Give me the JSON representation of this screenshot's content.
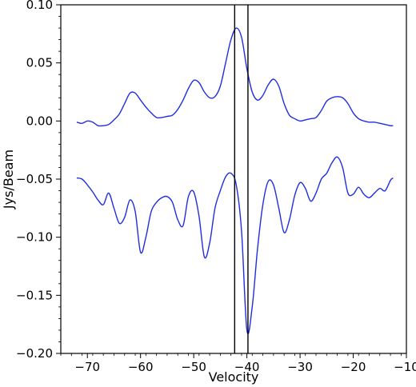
{
  "chart_data": {
    "type": "line",
    "xlabel": "Velocity",
    "ylabel": "Jys/Beam",
    "xlim": [
      -75,
      -10
    ],
    "ylim": [
      -0.2,
      0.1
    ],
    "xticks": [
      -70,
      -60,
      -50,
      -40,
      -30,
      -20,
      -10
    ],
    "xtick_labels": [
      "−70",
      "−60",
      "−50",
      "−40",
      "−30",
      "−20",
      "−10"
    ],
    "yticks": [
      -0.2,
      -0.15,
      -0.1,
      -0.05,
      0.0,
      0.05,
      0.1
    ],
    "ytick_labels": [
      "−0.20",
      "−0.15",
      "−0.10",
      "−0.05",
      "0.00",
      "0.05",
      "0.10"
    ],
    "grid": false,
    "vertical_lines": [
      -42.3,
      -39.8
    ],
    "series_color": "#1f2ee0",
    "vline_color": "#000000",
    "series": [
      {
        "x": [
          -72,
          -71,
          -70,
          -69,
          -68,
          -67,
          -66,
          -65,
          -64,
          -63,
          -62,
          -61,
          -60,
          -59,
          -58,
          -57,
          -56,
          -55,
          -54,
          -53,
          -52,
          -51,
          -50,
          -49,
          -48,
          -47,
          -46,
          -45,
          -44,
          -43,
          -42,
          -41,
          -40,
          -39,
          -38,
          -37,
          -36,
          -35,
          -34,
          -33,
          -32,
          -31,
          -30,
          -29,
          -28,
          -27,
          -26,
          -25,
          -24,
          -23,
          -22,
          -21,
          -20,
          -19,
          -18,
          -17,
          -16,
          -15,
          -14,
          -13,
          -12.5
        ],
        "y": [
          -0.001,
          -0.002,
          0.0,
          -0.001,
          -0.004,
          -0.004,
          -0.003,
          0.001,
          0.006,
          0.015,
          0.024,
          0.024,
          0.018,
          0.012,
          0.007,
          0.003,
          0.003,
          0.004,
          0.005,
          0.01,
          0.018,
          0.028,
          0.035,
          0.033,
          0.025,
          0.02,
          0.021,
          0.03,
          0.05,
          0.07,
          0.08,
          0.072,
          0.045,
          0.025,
          0.018,
          0.022,
          0.031,
          0.036,
          0.03,
          0.015,
          0.005,
          0.002,
          0.0,
          0.001,
          0.002,
          0.003,
          0.009,
          0.017,
          0.02,
          0.021,
          0.02,
          0.015,
          0.007,
          0.002,
          0.0,
          -0.001,
          -0.001,
          -0.002,
          -0.003,
          -0.004,
          -0.004
        ]
      },
      {
        "x": [
          -72,
          -71,
          -70,
          -69,
          -68,
          -67,
          -66,
          -65,
          -64,
          -63,
          -62,
          -61,
          -60,
          -59,
          -58,
          -57,
          -56,
          -55,
          -54,
          -53,
          -52,
          -51,
          -50,
          -49,
          -48,
          -47,
          -46,
          -45,
          -44,
          -43,
          -42,
          -41,
          -40,
          -39,
          -38,
          -37,
          -36,
          -35,
          -34,
          -33,
          -32,
          -31,
          -30,
          -29,
          -28,
          -27,
          -26,
          -25,
          -24,
          -23,
          -22,
          -21,
          -20,
          -19,
          -18,
          -17,
          -16,
          -15,
          -14,
          -13,
          -12.5
        ],
        "y": [
          -0.049,
          -0.05,
          -0.055,
          -0.061,
          -0.068,
          -0.072,
          -0.062,
          -0.075,
          -0.088,
          -0.083,
          -0.068,
          -0.078,
          -0.113,
          -0.1,
          -0.078,
          -0.07,
          -0.066,
          -0.065,
          -0.07,
          -0.085,
          -0.09,
          -0.065,
          -0.061,
          -0.082,
          -0.117,
          -0.105,
          -0.075,
          -0.06,
          -0.048,
          -0.045,
          -0.055,
          -0.095,
          -0.18,
          -0.16,
          -0.11,
          -0.072,
          -0.052,
          -0.055,
          -0.075,
          -0.096,
          -0.085,
          -0.064,
          -0.053,
          -0.058,
          -0.069,
          -0.062,
          -0.05,
          -0.045,
          -0.036,
          -0.031,
          -0.04,
          -0.062,
          -0.063,
          -0.057,
          -0.063,
          -0.066,
          -0.062,
          -0.058,
          -0.06,
          -0.051,
          -0.049
        ]
      }
    ]
  }
}
